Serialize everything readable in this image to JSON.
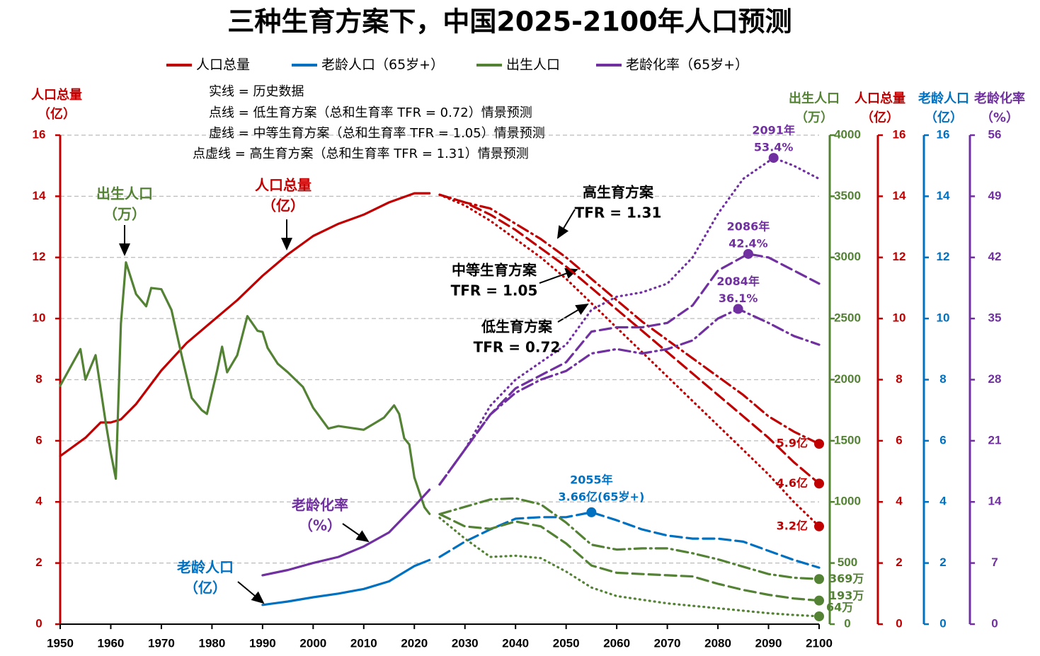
{
  "chart_data": {
    "type": "line",
    "title": "三种生育方案下，中国2025-2100年人口预测",
    "notes": [
      "实线 = 历史数据",
      "点线 = 低生育方案（总和生育率 TFR = 0.72）情景预测",
      "虚线 = 中等生育方案（总和生育率 TFR = 1.05）情景预测",
      "点虚线 = 高生育方案（总和生育率 TFR = 1.31）情景预测"
    ],
    "xlim": [
      1950,
      2100
    ],
    "xticks": [
      1950,
      1960,
      1970,
      1980,
      1990,
      2000,
      2010,
      2020,
      2030,
      2040,
      2050,
      2060,
      2070,
      2080,
      2090,
      2100
    ],
    "grid": true,
    "styles": {
      "history": "solid",
      "low": "dotted",
      "medium": "dashed",
      "high": "dashdot"
    },
    "axes": [
      {
        "title": [
          "人口总量",
          "（亿）"
        ],
        "color": "#c00000",
        "lim": [
          0,
          16
        ],
        "ticks": [
          0,
          2,
          4,
          6,
          8,
          10,
          12,
          14,
          16
        ]
      },
      {
        "title": [
          "出生人口",
          "（万）"
        ],
        "color": "#548235",
        "lim": [
          0,
          4000
        ],
        "ticks": [
          0,
          500,
          1000,
          1500,
          2000,
          2500,
          3000,
          3500,
          4000
        ]
      },
      {
        "title": [
          "人口总量",
          "（亿）"
        ],
        "color": "#c00000",
        "lim": [
          0,
          16
        ],
        "ticks": [
          0,
          2,
          4,
          6,
          8,
          10,
          12,
          14,
          16
        ]
      },
      {
        "title": [
          "老龄人口",
          "（亿）"
        ],
        "color": "#0070c0",
        "lim": [
          0,
          16
        ],
        "ticks": [
          0,
          2,
          4,
          6,
          8,
          10,
          12,
          14,
          16
        ]
      },
      {
        "title": [
          "老龄化率",
          "（%）"
        ],
        "color": "#7030a0",
        "lim": [
          0,
          56
        ],
        "ticks": [
          0,
          7,
          14,
          21,
          28,
          35,
          42,
          49,
          56
        ]
      }
    ],
    "series": [
      {
        "name": "人口总量",
        "color": "#c00000",
        "axis": 0,
        "history": {
          "x": [
            1950,
            1955,
            1958,
            1960,
            1962,
            1965,
            1970,
            1975,
            1980,
            1985,
            1990,
            1995,
            2000,
            2005,
            2010,
            2015,
            2020,
            2023
          ],
          "values": [
            5.5,
            6.1,
            6.6,
            6.6,
            6.7,
            7.2,
            8.3,
            9.2,
            9.9,
            10.6,
            11.4,
            12.1,
            12.7,
            13.1,
            13.4,
            13.8,
            14.1,
            14.1
          ]
        },
        "low": {
          "x": [
            2025,
            2030,
            2035,
            2040,
            2045,
            2050,
            2055,
            2060,
            2065,
            2070,
            2075,
            2080,
            2085,
            2090,
            2095,
            2100
          ],
          "values": [
            14.05,
            13.7,
            13.2,
            12.6,
            12.0,
            11.3,
            10.5,
            9.7,
            8.9,
            8.1,
            7.3,
            6.5,
            5.7,
            4.9,
            4.0,
            3.2
          ]
        },
        "medium": {
          "x": [
            2025,
            2030,
            2035,
            2040,
            2045,
            2050,
            2055,
            2060,
            2065,
            2070,
            2075,
            2080,
            2085,
            2090,
            2095,
            2100
          ],
          "values": [
            14.05,
            13.8,
            13.4,
            12.9,
            12.3,
            11.7,
            11.0,
            10.3,
            9.6,
            8.9,
            8.2,
            7.5,
            6.8,
            6.1,
            5.3,
            4.6
          ]
        },
        "high": {
          "x": [
            2025,
            2030,
            2035,
            2040,
            2045,
            2050,
            2055,
            2060,
            2065,
            2070,
            2075,
            2080,
            2085,
            2090,
            2095,
            2100
          ],
          "values": [
            14.05,
            13.8,
            13.6,
            13.1,
            12.6,
            12.0,
            11.3,
            10.6,
            9.9,
            9.3,
            8.7,
            8.1,
            7.5,
            6.8,
            6.3,
            5.9
          ]
        }
      },
      {
        "name": "老龄人口（65岁+）",
        "color": "#0070c0",
        "axis": 3,
        "history": {
          "x": [
            1990,
            1995,
            2000,
            2005,
            2010,
            2015,
            2020,
            2023
          ],
          "values": [
            0.63,
            0.74,
            0.88,
            1.0,
            1.15,
            1.4,
            1.9,
            2.1
          ]
        },
        "medium": {
          "x": [
            2025,
            2030,
            2035,
            2040,
            2045,
            2050,
            2055,
            2060,
            2065,
            2070,
            2075,
            2080,
            2085,
            2090,
            2095,
            2100
          ],
          "values": [
            2.2,
            2.7,
            3.1,
            3.45,
            3.5,
            3.5,
            3.66,
            3.4,
            3.1,
            2.9,
            2.8,
            2.8,
            2.7,
            2.4,
            2.1,
            1.85
          ]
        }
      },
      {
        "name": "出生人口",
        "color": "#548235",
        "axis": 1,
        "history": {
          "x": [
            1950,
            1952,
            1954,
            1955,
            1957,
            1959,
            1960,
            1961,
            1962,
            1963,
            1965,
            1967,
            1968,
            1970,
            1972,
            1974,
            1976,
            1978,
            1979,
            1981,
            1982,
            1983,
            1985,
            1987,
            1989,
            1990,
            1991,
            1993,
            1995,
            1998,
            2000,
            2003,
            2005,
            2010,
            2012,
            2014,
            2016,
            2017,
            2018,
            2019,
            2020,
            2022,
            2023
          ],
          "values": [
            1950,
            2100,
            2250,
            2000,
            2200,
            1650,
            1400,
            1190,
            2460,
            2960,
            2700,
            2600,
            2750,
            2740,
            2570,
            2200,
            1850,
            1750,
            1720,
            2070,
            2270,
            2060,
            2200,
            2520,
            2400,
            2390,
            2260,
            2130,
            2060,
            1940,
            1770,
            1600,
            1620,
            1590,
            1640,
            1690,
            1790,
            1720,
            1520,
            1470,
            1200,
            956,
            902
          ]
        },
        "low": {
          "x": [
            2025,
            2030,
            2035,
            2040,
            2045,
            2050,
            2055,
            2060,
            2065,
            2070,
            2075,
            2080,
            2085,
            2090,
            2095,
            2100
          ],
          "values": [
            870,
            700,
            550,
            560,
            540,
            430,
            300,
            230,
            200,
            170,
            150,
            130,
            110,
            90,
            75,
            64
          ]
        },
        "medium": {
          "x": [
            2025,
            2030,
            2035,
            2040,
            2045,
            2050,
            2055,
            2060,
            2065,
            2070,
            2075,
            2080,
            2085,
            2090,
            2095,
            2100
          ],
          "values": [
            900,
            800,
            780,
            840,
            800,
            660,
            480,
            420,
            410,
            400,
            390,
            330,
            280,
            240,
            210,
            193
          ]
        },
        "high": {
          "x": [
            2025,
            2030,
            2035,
            2040,
            2045,
            2050,
            2055,
            2060,
            2065,
            2070,
            2075,
            2080,
            2085,
            2090,
            2095,
            2100
          ],
          "values": [
            900,
            960,
            1020,
            1030,
            980,
            830,
            650,
            610,
            620,
            620,
            580,
            530,
            470,
            410,
            380,
            369
          ]
        }
      },
      {
        "name": "老龄化率（65岁+）",
        "color": "#7030a0",
        "axis": 4,
        "history": {
          "x": [
            1990,
            1995,
            2000,
            2005,
            2010,
            2015,
            2020,
            2023
          ],
          "values": [
            5.6,
            6.2,
            7.0,
            7.7,
            8.9,
            10.5,
            13.5,
            15.4
          ]
        },
        "low": {
          "x": [
            2025,
            2030,
            2035,
            2040,
            2045,
            2050,
            2055,
            2060,
            2065,
            2070,
            2075,
            2080,
            2085,
            2091,
            2095,
            2100
          ],
          "values": [
            16,
            20,
            25,
            28,
            30,
            32,
            36,
            37.5,
            38,
            39,
            42,
            47,
            51,
            53.4,
            52.5,
            51
          ]
        },
        "medium": {
          "x": [
            2025,
            2030,
            2035,
            2040,
            2045,
            2050,
            2055,
            2060,
            2065,
            2070,
            2075,
            2080,
            2086,
            2090,
            2095,
            2100
          ],
          "values": [
            16,
            20,
            24,
            27,
            28.5,
            30,
            33.5,
            34,
            34,
            34.5,
            36.5,
            40.5,
            42.4,
            42,
            40.5,
            39
          ]
        },
        "high": {
          "x": [
            2025,
            2030,
            2035,
            2040,
            2045,
            2050,
            2055,
            2060,
            2065,
            2070,
            2075,
            2080,
            2084,
            2090,
            2095,
            2100
          ],
          "values": [
            16,
            20,
            24,
            26.5,
            28,
            29,
            31,
            31.5,
            31,
            31.5,
            32.5,
            35,
            36.1,
            34.5,
            33,
            32
          ]
        }
      }
    ],
    "annotations": [
      {
        "series": 3,
        "x": 2091,
        "value": 53.4,
        "label": [
          "2091年",
          "53.4%"
        ]
      },
      {
        "series": 3,
        "x": 2086,
        "value": 42.4,
        "label": [
          "2086年",
          "42.4%"
        ]
      },
      {
        "series": 3,
        "x": 2084,
        "value": 36.1,
        "label": [
          "2084年",
          "36.1%"
        ]
      },
      {
        "series": 1,
        "x": 2055,
        "value": 3.66,
        "label": [
          "2055年",
          "3.66亿(65岁+)"
        ]
      },
      {
        "series": 0,
        "x": 2100,
        "value": 5.9,
        "label": [
          "5.9亿"
        ]
      },
      {
        "series": 0,
        "x": 2100,
        "value": 4.6,
        "label": [
          "4.6亿"
        ]
      },
      {
        "series": 0,
        "x": 2100,
        "value": 3.2,
        "label": [
          "3.2亿"
        ]
      },
      {
        "series": 2,
        "x": 2100,
        "value": 369,
        "label": [
          "369万"
        ]
      },
      {
        "series": 2,
        "x": 2100,
        "value": 193,
        "label": [
          "193万"
        ]
      },
      {
        "series": 2,
        "x": 2100,
        "value": 64,
        "label": [
          "64万"
        ]
      }
    ],
    "callouts": [
      {
        "label": [
          "高生育方案",
          "TFR = 1.31"
        ]
      },
      {
        "label": [
          "中等生育方案",
          "TFR = 1.05"
        ]
      },
      {
        "label": [
          "低生育方案",
          "TFR = 0.72"
        ]
      },
      {
        "label": [
          "出生人口",
          "（万）"
        ],
        "series": 2
      },
      {
        "label": [
          "人口总量",
          "（亿）"
        ],
        "series": 0
      },
      {
        "label": [
          "老龄化率",
          "（%）"
        ],
        "series": 3
      },
      {
        "label": [
          "老龄人口",
          "（亿）"
        ],
        "series": 1
      }
    ]
  }
}
